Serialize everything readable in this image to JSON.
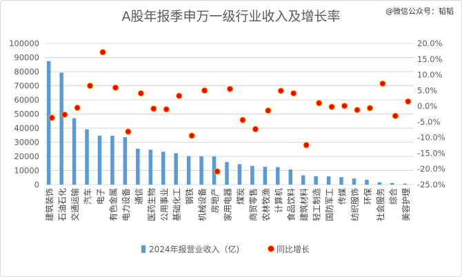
{
  "title": "A股年报季申万一级行业收入及增长率",
  "watermark": "@微信公众号：韬韬",
  "colors": {
    "bar": "#5b9bd5",
    "dot": "#ff0000",
    "dot_stroke": "#ffc000",
    "grid": "#d9d9d9"
  },
  "chart_data": {
    "type": "bar",
    "categories": [
      "建筑装饰",
      "石油石化",
      "交通运输",
      "汽车",
      "电子",
      "有色金属",
      "电力设备",
      "通信",
      "医药生物",
      "公用事业",
      "基础化工",
      "钢铁",
      "机械设备",
      "房地产",
      "家用电器",
      "煤炭",
      "商贸零售",
      "农林牧渔",
      "计算机",
      "食品饮料",
      "建筑材料",
      "轻工制造",
      "国防军工",
      "传媒",
      "纺织服饰",
      "环保",
      "社会服务",
      "综合",
      "美容护理"
    ],
    "series": [
      {
        "name": "2024年报营业收入（亿)",
        "type": "bar",
        "axis": "left",
        "values": [
          87500,
          79300,
          47100,
          39200,
          34700,
          34600,
          33600,
          25500,
          24700,
          23300,
          22300,
          20200,
          20100,
          20000,
          16000,
          14500,
          13300,
          12600,
          12400,
          10800,
          6600,
          6000,
          5900,
          5400,
          4400,
          3500,
          1700,
          1200,
          700
        ]
      },
      {
        "name": "同比增长",
        "type": "scatter",
        "axis": "right",
        "values": [
          -3.7,
          -2.7,
          -0.5,
          6.5,
          17.2,
          5.9,
          -8.1,
          4.1,
          -0.8,
          -1.0,
          3.3,
          -9.4,
          5.0,
          -20.8,
          5.5,
          -4.4,
          -7.3,
          -1.4,
          4.9,
          4.1,
          -12.4,
          1.0,
          -0.2,
          0.1,
          -1.2,
          -0.6,
          7.2,
          -3.1,
          1.5
        ]
      }
    ],
    "left_axis": {
      "ylim": [
        0,
        100000
      ],
      "ticks": [
        "0",
        "10000",
        "20000",
        "30000",
        "40000",
        "50000",
        "60000",
        "70000",
        "80000",
        "90000",
        "100000"
      ]
    },
    "right_axis": {
      "ylim": [
        -25,
        20
      ],
      "ticks": [
        "-25.0%",
        "-20.0%",
        "-15.0%",
        "-10.0%",
        "-5.0%",
        "0.0%",
        "5.0%",
        "10.0%",
        "15.0%",
        "20.0%"
      ]
    },
    "grid": true,
    "legend": "bottom"
  }
}
